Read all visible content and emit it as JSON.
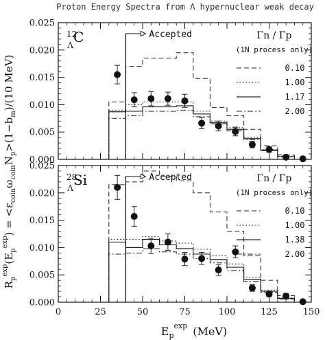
{
  "figure": {
    "title": "Proton Energy Spectra from Λ hypernuclear weak decay",
    "xlabel": "E",
    "xlabel_sub": "p",
    "xlabel_sup": "exp",
    "xlabel_unit": "(MeV)",
    "ylabel": "R_p^exp(E_p^exp) = <ε_coin ω_coin N_p>(1−b_m)/(10 MeV)"
  },
  "chart_data": [
    {
      "type": "line",
      "panel": "top",
      "nucleus_mass": "12",
      "nucleus_sub": "Λ",
      "nucleus_symbol": "C",
      "annotation": "Accepted",
      "accepted_threshold_mev": 40,
      "legend_title_1": "Γn / Γp",
      "legend_title_2": "(1N process only)",
      "xlim": [
        0,
        150
      ],
      "ylim": [
        0,
        0.025
      ],
      "x_ticks": [
        "0",
        "25",
        "50",
        "75",
        "100",
        "125",
        "150"
      ],
      "y_ticks": [
        "0.000",
        "0.005",
        "0.010",
        "0.015",
        "0.020",
        "0.025"
      ],
      "grid": false,
      "legend_position": "top-right",
      "series": [
        {
          "name": "0.10",
          "style": "dashed",
          "bins": [
            30,
            40,
            50,
            60,
            70,
            80,
            90,
            100,
            110,
            120,
            130,
            140
          ],
          "values": [
            0.0105,
            0.017,
            0.0185,
            0.0185,
            0.0195,
            0.0148,
            0.0095,
            0.008,
            0.0055,
            0.0025,
            0.0008
          ]
        },
        {
          "name": "1.00",
          "style": "dotted",
          "bins": [
            30,
            40,
            50,
            60,
            70,
            80,
            90,
            100,
            110,
            120,
            130,
            140
          ],
          "values": [
            0.009,
            0.01,
            0.0105,
            0.0105,
            0.0105,
            0.0088,
            0.007,
            0.0058,
            0.004,
            0.0018,
            0.0006
          ]
        },
        {
          "name": "1.17",
          "style": "solid",
          "bins": [
            30,
            40,
            50,
            60,
            70,
            80,
            90,
            100,
            110,
            120,
            130,
            140
          ],
          "values": [
            0.0087,
            0.0088,
            0.0096,
            0.0096,
            0.0098,
            0.0083,
            0.0067,
            0.0055,
            0.0038,
            0.0017,
            0.0005
          ]
        },
        {
          "name": "2.00",
          "style": "dashdot",
          "bins": [
            30,
            40,
            50,
            60,
            70,
            80,
            90,
            100,
            110,
            120,
            130,
            140
          ],
          "values": [
            0.0075,
            0.008,
            0.0088,
            0.0088,
            0.009,
            0.0078,
            0.0065,
            0.0052,
            0.0036,
            0.0016,
            0.0005
          ]
        }
      ],
      "points": [
        {
          "x": 35,
          "y": 0.0155,
          "err": 0.0017
        },
        {
          "x": 45,
          "y": 0.0109,
          "err": 0.0013
        },
        {
          "x": 55,
          "y": 0.0111,
          "err": 0.0013
        },
        {
          "x": 65,
          "y": 0.0111,
          "err": 0.0012
        },
        {
          "x": 75,
          "y": 0.0107,
          "err": 0.0012
        },
        {
          "x": 85,
          "y": 0.0066,
          "err": 0.001
        },
        {
          "x": 95,
          "y": 0.0061,
          "err": 0.0009
        },
        {
          "x": 105,
          "y": 0.0051,
          "err": 0.0008
        },
        {
          "x": 115,
          "y": 0.0027,
          "err": 0.0006
        },
        {
          "x": 125,
          "y": 0.0018,
          "err": 0.0005
        },
        {
          "x": 135,
          "y": 0.0004,
          "err": 0.0003
        },
        {
          "x": 145,
          "y": 0.0001,
          "err": 0.0002
        }
      ]
    },
    {
      "type": "line",
      "panel": "bottom",
      "nucleus_mass": "28",
      "nucleus_sub": "Λ",
      "nucleus_symbol": "Si",
      "annotation": "Accepted",
      "accepted_threshold_mev": 40,
      "legend_title_1": "Γn / Γp",
      "legend_title_2": "(1N process only)",
      "xlim": [
        0,
        150
      ],
      "ylim": [
        0,
        0.025
      ],
      "x_ticks": [
        "0",
        "25",
        "50",
        "75",
        "100",
        "125",
        "150"
      ],
      "y_ticks": [
        "0.000",
        "0.005",
        "0.010",
        "0.015",
        "0.020",
        "0.025"
      ],
      "grid": false,
      "legend_position": "top-right",
      "series": [
        {
          "name": "0.10",
          "style": "dashed",
          "bins": [
            30,
            40,
            50,
            60,
            70,
            80,
            90,
            100,
            110,
            120,
            130,
            140
          ],
          "values": [
            0.0215,
            0.022,
            0.024,
            0.023,
            0.0222,
            0.02,
            0.0165,
            0.013,
            0.0085,
            0.004,
            0.0012
          ]
        },
        {
          "name": "1.00",
          "style": "dotted",
          "bins": [
            30,
            40,
            50,
            60,
            70,
            80,
            90,
            100,
            110,
            120,
            130,
            140
          ],
          "values": [
            0.0115,
            0.0115,
            0.012,
            0.0112,
            0.0108,
            0.0097,
            0.0085,
            0.007,
            0.0045,
            0.0022,
            0.0008
          ]
        },
        {
          "name": "1.38",
          "style": "solid",
          "bins": [
            30,
            40,
            50,
            60,
            70,
            80,
            90,
            100,
            110,
            120,
            130,
            140
          ],
          "values": [
            0.011,
            0.01,
            0.0115,
            0.0105,
            0.0098,
            0.0088,
            0.0078,
            0.0064,
            0.0042,
            0.002,
            0.0007
          ]
        },
        {
          "name": "2.00",
          "style": "dashdot",
          "bins": [
            30,
            40,
            50,
            60,
            70,
            80,
            90,
            100,
            110,
            120,
            130,
            140
          ],
          "values": [
            0.0088,
            0.009,
            0.0098,
            0.0092,
            0.0088,
            0.008,
            0.0072,
            0.0058,
            0.0038,
            0.0018,
            0.0006
          ]
        }
      ],
      "points": [
        {
          "x": 35,
          "y": 0.021,
          "err": 0.0022
        },
        {
          "x": 45,
          "y": 0.0157,
          "err": 0.0018
        },
        {
          "x": 55,
          "y": 0.0103,
          "err": 0.0014
        },
        {
          "x": 65,
          "y": 0.011,
          "err": 0.0015
        },
        {
          "x": 75,
          "y": 0.0079,
          "err": 0.0012
        },
        {
          "x": 85,
          "y": 0.008,
          "err": 0.0011
        },
        {
          "x": 95,
          "y": 0.0059,
          "err": 0.001
        },
        {
          "x": 105,
          "y": 0.0092,
          "err": 0.0011
        },
        {
          "x": 115,
          "y": 0.0026,
          "err": 0.0006
        },
        {
          "x": 125,
          "y": 0.0015,
          "err": 0.0005
        },
        {
          "x": 135,
          "y": 0.0011,
          "err": 0.0005
        },
        {
          "x": 145,
          "y": 0.0001,
          "err": 0.0002
        }
      ]
    }
  ]
}
